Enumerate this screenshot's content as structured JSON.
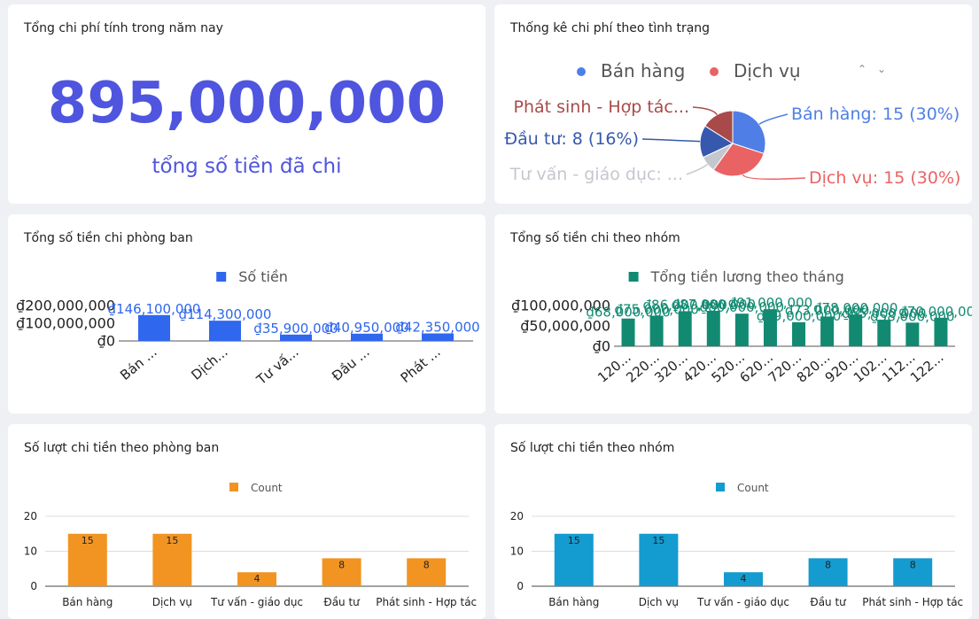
{
  "cards": {
    "total": {
      "title": "Tổng chi phí tính trong năm nay",
      "value": "895,000,000",
      "subtitle": "tổng số tiền đã chi"
    },
    "status": {
      "title": "Thống kê chi phí theo tình trạng"
    },
    "dept_amount": {
      "title": "Tổng số tiền chi phòng ban"
    },
    "group_amount": {
      "title": "Tổng số tiền chi theo nhóm"
    },
    "dept_count": {
      "title": "Số lượt chi tiền theo phòng ban"
    },
    "group_count": {
      "title": "Số lượt chi tiền theo nhóm"
    }
  },
  "icons": {
    "legend_prev": "chevron-up-icon",
    "legend_next": "chevron-down-icon"
  },
  "chart_data": [
    {
      "id": "status",
      "type": "pie",
      "legend": [
        "Bán hàng",
        "Dịch vụ"
      ],
      "legend_position": "top",
      "slices": [
        {
          "name": "Bán hàng",
          "value": 15,
          "label": "Bán hàng: 15 (30%)",
          "color": "#4f7fe6"
        },
        {
          "name": "Dịch vụ",
          "value": 15,
          "label": "Dịch vụ: 15 (30%)",
          "color": "#ea6364"
        },
        {
          "name": "Tư vấn - giáo dục",
          "value": 4,
          "label": "Tư vấn - giáo dục: ...",
          "color": "#c4c7ce"
        },
        {
          "name": "Đầu tư",
          "value": 8,
          "label": "Đầu tư: 8 (16%)",
          "color": "#3659ad"
        },
        {
          "name": "Phát sinh - Hợp tác",
          "value": 8,
          "label": "Phát sinh - Hợp tác...",
          "color": "#a94a4a"
        }
      ]
    },
    {
      "id": "dept_amount",
      "type": "bar",
      "legend": [
        "Số tiền"
      ],
      "color": "#2f67ee",
      "categories": [
        "Bán ...",
        "Dịch...",
        "Tư vấ...",
        "Đầu ...",
        "Phát ..."
      ],
      "values": [
        146100000,
        114300000,
        35900000,
        40950000,
        42350000
      ],
      "data_labels": [
        "₫146,100,000",
        "₫114,300,000",
        "₫35,900,000",
        "₫40,950,000",
        "₫42,350,000"
      ],
      "ylim": [
        0,
        200000000
      ],
      "y_ticks": [
        0,
        100000000,
        200000000
      ],
      "y_tick_labels": [
        "₫0",
        "₫100,000,000",
        "₫200,000,000"
      ]
    },
    {
      "id": "group_amount",
      "type": "bar",
      "legend": [
        "Tổng tiền lương theo tháng"
      ],
      "color": "#128a72",
      "categories": [
        "120...",
        "220...",
        "320...",
        "420...",
        "520...",
        "620...",
        "720...",
        "820...",
        "920...",
        "102...",
        "112...",
        "122..."
      ],
      "values": [
        68000000,
        75000000,
        86000000,
        87000000,
        80000000,
        91000000,
        59000000,
        73000000,
        78000000,
        65000000,
        58000000,
        70000000
      ],
      "data_labels": [
        "₫68,000,000",
        "₫75,000,000",
        "₫86,000,000",
        "₫87,000,000",
        "₫80,000,000",
        "₫91,000,000",
        "₫59,000,000",
        "₫73,000,000",
        "₫78,000,000",
        "₫65,000,000",
        "₫58,000,000",
        "₫70,000,000"
      ],
      "ylim": [
        0,
        100000000
      ],
      "y_ticks": [
        0,
        50000000,
        100000000
      ],
      "y_tick_labels": [
        "₫0",
        "₫50,000,000",
        "₫100,000,000"
      ]
    },
    {
      "id": "dept_count",
      "type": "bar",
      "legend": [
        "Count"
      ],
      "color": "#f29422",
      "categories": [
        "Bán hàng",
        "Dịch vụ",
        "Tư vấn - giáo dục",
        "Đầu tư",
        "Phát sinh - Hợp tác"
      ],
      "values": [
        15,
        15,
        4,
        8,
        8
      ],
      "data_labels": [
        "15",
        "15",
        "4",
        "8",
        "8"
      ],
      "ylim": [
        0,
        20
      ],
      "y_ticks": [
        0,
        10,
        20
      ],
      "y_tick_labels": [
        "0",
        "10",
        "20"
      ],
      "grid": true
    },
    {
      "id": "group_count",
      "type": "bar",
      "legend": [
        "Count"
      ],
      "color": "#149bd0",
      "categories": [
        "Bán hàng",
        "Dịch vụ",
        "Tư vấn - giáo dục",
        "Đầu tư",
        "Phát sinh - Hợp tác"
      ],
      "values": [
        15,
        15,
        4,
        8,
        8
      ],
      "data_labels": [
        "15",
        "15",
        "4",
        "8",
        "8"
      ],
      "ylim": [
        0,
        20
      ],
      "y_ticks": [
        0,
        10,
        20
      ],
      "y_tick_labels": [
        "0",
        "10",
        "20"
      ],
      "grid": true
    }
  ]
}
